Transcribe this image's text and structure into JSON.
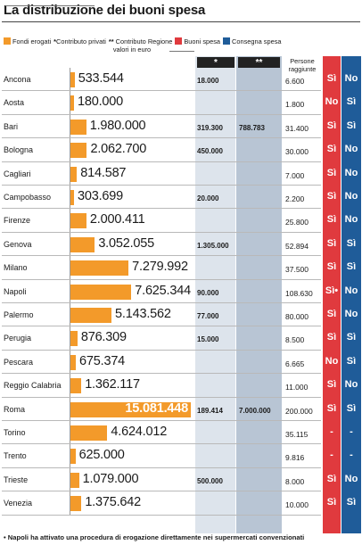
{
  "title": "La distribuzione dei buoni spesa",
  "legend": [
    {
      "label": "Fondi erogati",
      "color": "#f39a2a",
      "marker": "swatch"
    },
    {
      "label": "Contributo privati",
      "marker": "*"
    },
    {
      "label": "Contributo Regione",
      "marker": "**"
    },
    {
      "label": "Buoni spesa",
      "color": "#e03a3e",
      "marker": "swatch"
    },
    {
      "label": "Consegna  spesa",
      "color": "#1f5c99",
      "marker": "swatch"
    }
  ],
  "units_label": "valori in euro",
  "headers": {
    "privati": "*",
    "regione": "**",
    "persone": "Persone raggiunte"
  },
  "colors": {
    "bar": "#f39a2a",
    "buoni": "#e03a3e",
    "consegna": "#1f5c99"
  },
  "chart_data": {
    "type": "bar",
    "max_value": 15081448,
    "rows": [
      {
        "city": "Ancona",
        "fondi": "533.544",
        "value": 533544,
        "privati": "18.000",
        "regione": "",
        "persone": "6.600",
        "buoni": "Sì",
        "consegna": "No"
      },
      {
        "city": "Aosta",
        "fondi": "180.000",
        "value": 180000,
        "privati": "",
        "regione": "",
        "persone": "1.800",
        "buoni": "No",
        "consegna": "Sì"
      },
      {
        "city": "Bari",
        "fondi": "1.980.000",
        "value": 1980000,
        "privati": "319.300",
        "regione": "788.783",
        "persone": "31.400",
        "buoni": "Sì",
        "consegna": "Sì"
      },
      {
        "city": "Bologna",
        "fondi": "2.062.700",
        "value": 2062700,
        "privati": "450.000",
        "regione": "",
        "persone": "30.000",
        "buoni": "Sì",
        "consegna": "No"
      },
      {
        "city": "Cagliari",
        "fondi": "814.587",
        "value": 814587,
        "privati": "",
        "regione": "",
        "persone": "7.000",
        "buoni": "Sì",
        "consegna": "No"
      },
      {
        "city": "Campobasso",
        "fondi": "303.699",
        "value": 303699,
        "privati": "20.000",
        "regione": "",
        "persone": "2.200",
        "buoni": "Sì",
        "consegna": "No"
      },
      {
        "city": "Firenze",
        "fondi": "2.000.411",
        "value": 2000411,
        "privati": "",
        "regione": "",
        "persone": "25.800",
        "buoni": "Sì",
        "consegna": "No"
      },
      {
        "city": "Genova",
        "fondi": "3.052.055",
        "value": 3052055,
        "privati": "1.305.000",
        "regione": "",
        "persone": "52.894",
        "buoni": "Sì",
        "consegna": "Sì"
      },
      {
        "city": "Milano",
        "fondi": "7.279.992",
        "value": 7279992,
        "privati": "",
        "regione": "",
        "persone": "37.500",
        "buoni": "Sì",
        "consegna": "Sì"
      },
      {
        "city": "Napoli",
        "fondi": "7.625.344",
        "value": 7625344,
        "privati": "90.000",
        "regione": "",
        "persone": "108.630",
        "buoni": "Sì•",
        "consegna": "No"
      },
      {
        "city": "Palermo",
        "fondi": "5.143.562",
        "value": 5143562,
        "privati": "77.000",
        "regione": "",
        "persone": "80.000",
        "buoni": "Sì",
        "consegna": "No"
      },
      {
        "city": "Perugia",
        "fondi": "876.309",
        "value": 876309,
        "privati": "15.000",
        "regione": "",
        "persone": "8.500",
        "buoni": "Sì",
        "consegna": "Sì"
      },
      {
        "city": "Pescara",
        "fondi": "675.374",
        "value": 675374,
        "privati": "",
        "regione": "",
        "persone": "6.665",
        "buoni": "No",
        "consegna": "Sì"
      },
      {
        "city": "Reggio Calabria",
        "fondi": "1.362.117",
        "value": 1362117,
        "privati": "",
        "regione": "",
        "persone": "11.000",
        "buoni": "Sì",
        "consegna": "No"
      },
      {
        "city": "Roma",
        "fondi": "15.081.448",
        "value": 15081448,
        "privati": "189.414",
        "regione": "7.000.000",
        "persone": "200.000",
        "buoni": "Sì",
        "consegna": "Sì"
      },
      {
        "city": "Torino",
        "fondi": "4.624.012",
        "value": 4624012,
        "privati": "",
        "regione": "",
        "persone": "35.115",
        "buoni": "-",
        "consegna": "-"
      },
      {
        "city": "Trento",
        "fondi": "625.000",
        "value": 625000,
        "privati": "",
        "regione": "",
        "persone": "9.816",
        "buoni": "-",
        "consegna": "-"
      },
      {
        "city": "Trieste",
        "fondi": "1.079.000",
        "value": 1079000,
        "privati": "500.000",
        "regione": "",
        "persone": "8.000",
        "buoni": "Sì",
        "consegna": "No"
      },
      {
        "city": "Venezia",
        "fondi": "1.375.642",
        "value": 1375642,
        "privati": "",
        "regione": "",
        "persone": "10.000",
        "buoni": "Sì",
        "consegna": "Sì"
      }
    ]
  },
  "footnote": "• Napoli ha attivato una procedura di erogazione direttamente nei supermercati convenzionati"
}
